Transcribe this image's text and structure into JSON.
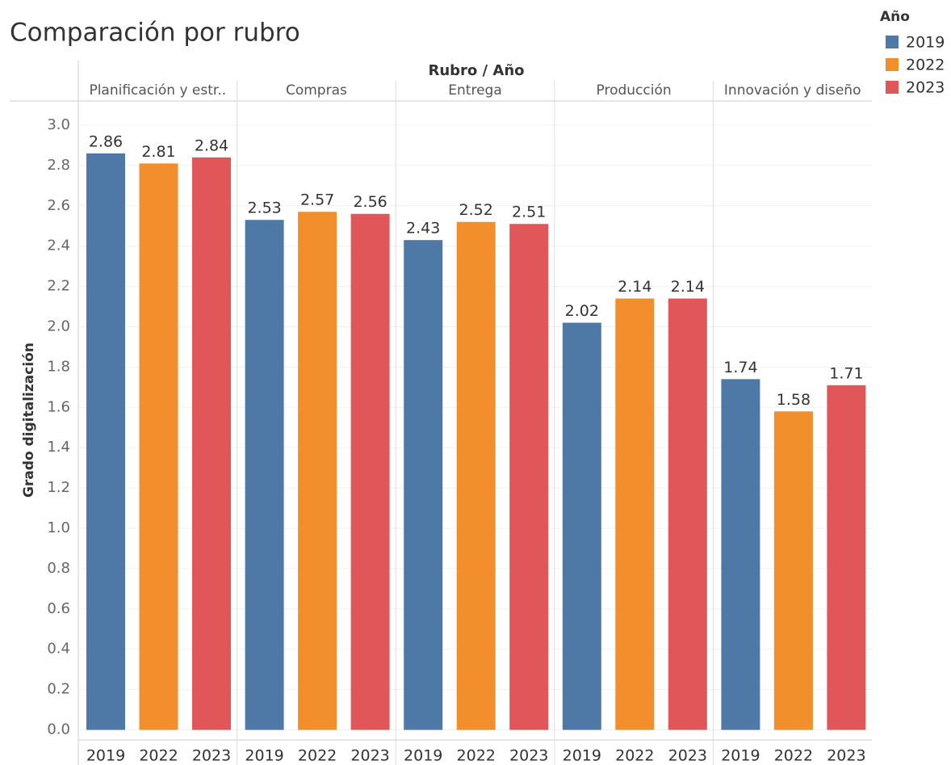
{
  "chart_data": {
    "type": "bar",
    "title": "Comparación por rubro",
    "column_header": "Rubro / Año",
    "legend_title": "Año",
    "y_label": "Grado digitalización",
    "categories": [
      "Planificación y estr..",
      "Compras",
      "Entrega",
      "Producción",
      "Innovación y diseño"
    ],
    "series": [
      {
        "name": "2019",
        "color": "#4e79a7",
        "values": [
          2.86,
          2.53,
          2.43,
          2.02,
          1.74
        ]
      },
      {
        "name": "2022",
        "color": "#f28e2b",
        "values": [
          2.81,
          2.57,
          2.52,
          2.14,
          1.58
        ]
      },
      {
        "name": "2023",
        "color": "#e15759",
        "values": [
          2.84,
          2.56,
          2.51,
          2.14,
          1.71
        ]
      }
    ],
    "ylim": [
      -0.05,
      3.12
    ],
    "yticks": [
      {
        "value": 0,
        "label": "0.0"
      },
      0.2,
      0.4,
      0.6,
      0.8,
      {
        "value": 1,
        "label": "1.0"
      },
      1.2,
      1.4,
      1.6,
      1.8,
      {
        "value": 2,
        "label": "2.0"
      },
      2.2,
      2.4,
      2.6,
      2.8,
      {
        "value": 3,
        "label": "3.0"
      }
    ],
    "grid": true,
    "legend": "top-right"
  }
}
